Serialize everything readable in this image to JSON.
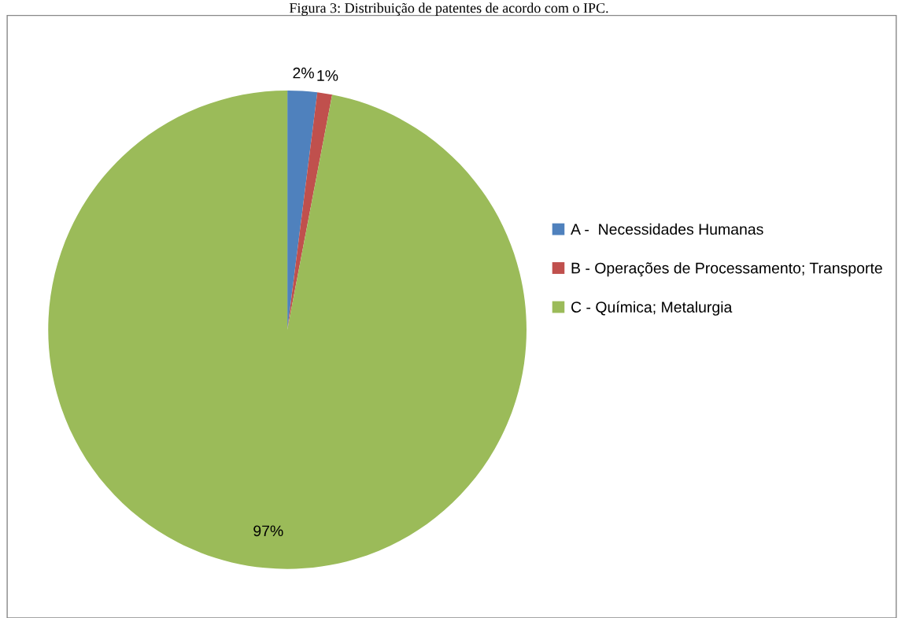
{
  "chart_data": {
    "type": "pie",
    "title": "Figura 3: Distribuição de patentes de acordo com o IPC.",
    "categories": [
      "A -  Necessidades Humanas",
      "B - Operações de Processamento; Transporte",
      "C - Química; Metalurgia"
    ],
    "values": [
      2,
      1,
      97
    ],
    "colors": [
      "#4f81bd",
      "#c0504d",
      "#9bbb59"
    ],
    "value_labels": [
      "2%",
      "1%",
      "97%"
    ],
    "legend": "right"
  }
}
